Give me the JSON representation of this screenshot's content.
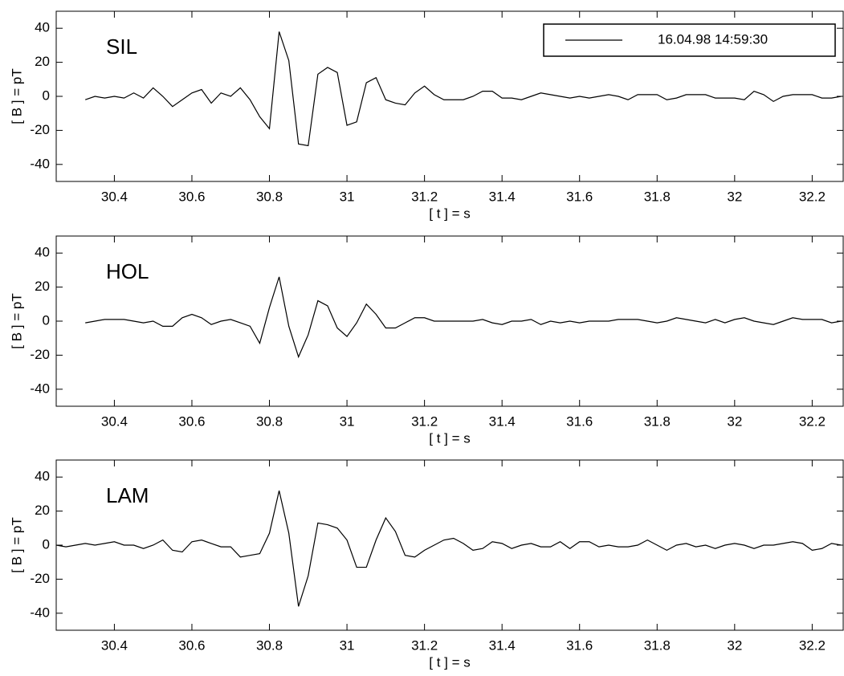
{
  "chart_data": [
    {
      "type": "line",
      "annotation": "SIL",
      "xlabel": "[ t ] = s",
      "ylabel": "[ B ] = pT",
      "xlim": [
        30.25,
        32.28
      ],
      "ylim": [
        -50,
        50
      ],
      "xticks": [
        30.4,
        30.6,
        30.8,
        31,
        31.2,
        31.4,
        31.6,
        31.8,
        32,
        32.2
      ],
      "yticks": [
        -40,
        -20,
        0,
        20,
        40
      ],
      "legend": "upper right",
      "x": [
        30.325,
        30.35,
        30.375,
        30.4,
        30.425,
        30.45,
        30.475,
        30.5,
        30.525,
        30.55,
        30.575,
        30.6,
        30.625,
        30.65,
        30.675,
        30.7,
        30.725,
        30.75,
        30.775,
        30.8,
        30.825,
        30.85,
        30.875,
        30.9,
        30.925,
        30.95,
        30.975,
        31,
        31.025,
        31.05,
        31.075,
        31.1,
        31.125,
        31.15,
        31.175,
        31.2,
        31.225,
        31.25,
        31.275,
        31.3,
        31.325,
        31.35,
        31.375,
        31.4,
        31.425,
        31.45,
        31.475,
        31.5,
        31.525,
        31.55,
        31.575,
        31.6,
        31.625,
        31.65,
        31.675,
        31.7,
        31.725,
        31.75,
        31.775,
        31.8,
        31.825,
        31.85,
        31.875,
        31.9,
        31.925,
        31.95,
        31.975,
        32,
        32.025,
        32.05,
        32.075,
        32.1,
        32.125,
        32.15,
        32.175,
        32.2,
        32.225,
        32.25,
        32.275
      ],
      "series": [
        {
          "name": "16.04.98 14:59:30",
          "color": "#000000",
          "values": [
            -2,
            0,
            -1,
            0,
            -1,
            2,
            -1,
            5,
            0,
            -6,
            -2,
            2,
            4,
            -4,
            2,
            0,
            5,
            -2,
            -12,
            -19,
            38,
            21,
            -28,
            -29,
            13,
            17,
            14,
            -17,
            -15,
            8,
            11,
            -2,
            -4,
            -5,
            2,
            6,
            1,
            -2,
            -2,
            -2,
            0,
            3,
            3,
            -1,
            -1,
            -2,
            0,
            2,
            1,
            0,
            -1,
            0,
            -1,
            0,
            1,
            0,
            -2,
            1,
            1,
            1,
            -2,
            -1,
            1,
            1,
            1,
            -1,
            -1,
            -1,
            -2,
            3,
            1,
            -3,
            0,
            1,
            1,
            1,
            -1,
            -1,
            0
          ]
        }
      ]
    },
    {
      "type": "line",
      "annotation": "HOL",
      "xlabel": "[ t ] = s",
      "ylabel": "[ B ] = pT",
      "xlim": [
        30.25,
        32.28
      ],
      "ylim": [
        -50,
        50
      ],
      "xticks": [
        30.4,
        30.6,
        30.8,
        31,
        31.2,
        31.4,
        31.6,
        31.8,
        32,
        32.2
      ],
      "yticks": [
        -40,
        -20,
        0,
        20,
        40
      ],
      "x": [
        30.325,
        30.35,
        30.375,
        30.4,
        30.425,
        30.45,
        30.475,
        30.5,
        30.525,
        30.55,
        30.575,
        30.6,
        30.625,
        30.65,
        30.675,
        30.7,
        30.725,
        30.75,
        30.775,
        30.8,
        30.825,
        30.85,
        30.875,
        30.9,
        30.925,
        30.95,
        30.975,
        31,
        31.025,
        31.05,
        31.075,
        31.1,
        31.125,
        31.15,
        31.175,
        31.2,
        31.225,
        31.25,
        31.275,
        31.3,
        31.325,
        31.35,
        31.375,
        31.4,
        31.425,
        31.45,
        31.475,
        31.5,
        31.525,
        31.55,
        31.575,
        31.6,
        31.625,
        31.65,
        31.675,
        31.7,
        31.725,
        31.75,
        31.775,
        31.8,
        31.825,
        31.85,
        31.875,
        31.9,
        31.925,
        31.95,
        31.975,
        32,
        32.025,
        32.05,
        32.075,
        32.1,
        32.125,
        32.15,
        32.175,
        32.2,
        32.225,
        32.25,
        32.275
      ],
      "series": [
        {
          "color": "#000000",
          "values": [
            -1,
            0,
            1,
            1,
            1,
            0,
            -1,
            0,
            -3,
            -3,
            2,
            4,
            2,
            -2,
            0,
            1,
            -1,
            -3,
            -13,
            8,
            26,
            -3,
            -21,
            -8,
            12,
            9,
            -4,
            -9,
            -1,
            10,
            4,
            -4,
            -4,
            -1,
            2,
            2,
            0,
            0,
            0,
            0,
            0,
            1,
            -1,
            -2,
            0,
            0,
            1,
            -2,
            0,
            -1,
            0,
            -1,
            0,
            0,
            0,
            1,
            1,
            1,
            0,
            -1,
            0,
            2,
            1,
            0,
            -1,
            1,
            -1,
            1,
            2,
            0,
            -1,
            -2,
            0,
            2,
            1,
            1,
            1,
            -1,
            0
          ]
        }
      ]
    },
    {
      "type": "line",
      "annotation": "LAM",
      "xlabel": "[ t ] = s",
      "ylabel": "[ B ] = pT",
      "xlim": [
        30.25,
        32.28
      ],
      "ylim": [
        -50,
        50
      ],
      "xticks": [
        30.4,
        30.6,
        30.8,
        31,
        31.2,
        31.4,
        31.6,
        31.8,
        32,
        32.2
      ],
      "yticks": [
        -40,
        -20,
        0,
        20,
        40
      ],
      "x": [
        30.25,
        30.275,
        30.3,
        30.325,
        30.35,
        30.375,
        30.4,
        30.425,
        30.45,
        30.475,
        30.5,
        30.525,
        30.55,
        30.575,
        30.6,
        30.625,
        30.65,
        30.675,
        30.7,
        30.725,
        30.75,
        30.775,
        30.8,
        30.825,
        30.85,
        30.875,
        30.9,
        30.925,
        30.95,
        30.975,
        31,
        31.025,
        31.05,
        31.075,
        31.1,
        31.125,
        31.15,
        31.175,
        31.2,
        31.225,
        31.25,
        31.275,
        31.3,
        31.325,
        31.35,
        31.375,
        31.4,
        31.425,
        31.45,
        31.475,
        31.5,
        31.525,
        31.55,
        31.575,
        31.6,
        31.625,
        31.65,
        31.675,
        31.7,
        31.725,
        31.75,
        31.775,
        31.8,
        31.825,
        31.85,
        31.875,
        31.9,
        31.925,
        31.95,
        31.975,
        32,
        32.025,
        32.05,
        32.075,
        32.1,
        32.125,
        32.15,
        32.175,
        32.2,
        32.225,
        32.25,
        32.275
      ],
      "series": [
        {
          "color": "#000000",
          "values": [
            0,
            -1,
            0,
            1,
            0,
            1,
            2,
            0,
            0,
            -2,
            0,
            3,
            -3,
            -4,
            2,
            3,
            1,
            -1,
            -1,
            -7,
            -6,
            -5,
            7,
            32,
            7,
            -36,
            -18,
            13,
            12,
            10,
            3,
            -13,
            -13,
            3,
            16,
            8,
            -6,
            -7,
            -3,
            0,
            3,
            4,
            1,
            -3,
            -2,
            2,
            1,
            -2,
            0,
            1,
            -1,
            -1,
            2,
            -2,
            2,
            2,
            -1,
            0,
            -1,
            -1,
            0,
            3,
            0,
            -3,
            0,
            1,
            -1,
            0,
            -2,
            0,
            1,
            0,
            -2,
            0,
            0,
            1,
            2,
            1,
            -3,
            -2,
            1,
            0
          ]
        }
      ]
    }
  ]
}
